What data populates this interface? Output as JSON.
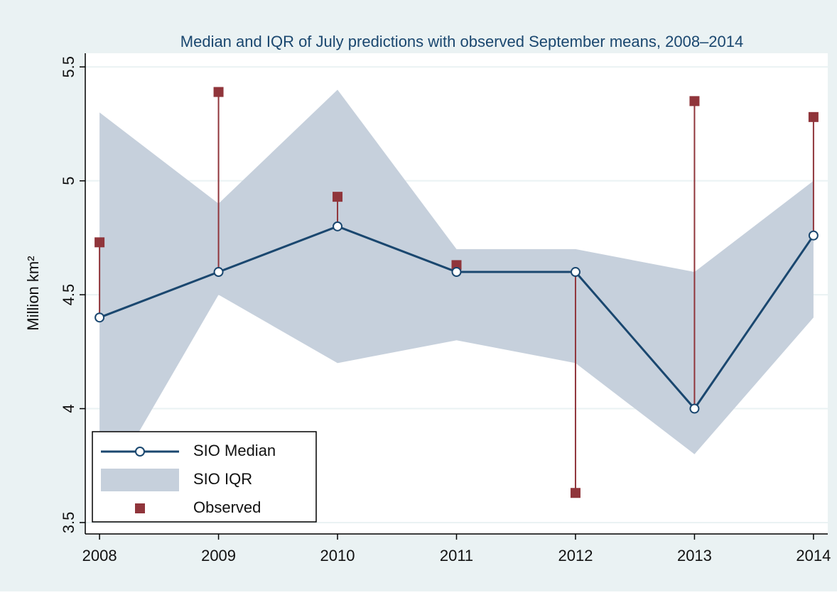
{
  "chart_data": {
    "type": "line",
    "title": "Median and IQR of July predictions with observed September means, 2008–2014",
    "ylabel": "Million km²",
    "x": [
      2008,
      2009,
      2010,
      2011,
      2012,
      2013,
      2014
    ],
    "xlim": [
      2007.88,
      2014.12
    ],
    "xticks": [
      2008,
      2009,
      2010,
      2011,
      2012,
      2013,
      2014
    ],
    "ylim": [
      3.45,
      5.56
    ],
    "yticks": [
      3.5,
      4.0,
      4.5,
      5.0,
      5.5
    ],
    "grid": true,
    "legend": "bottom-left",
    "series": [
      {
        "name": "SIO Median",
        "color": "#1a476f",
        "kind": "line",
        "values": [
          4.4,
          4.6,
          4.8,
          4.6,
          4.6,
          4.0,
          4.76
        ]
      },
      {
        "name": "SIO IQR",
        "color": "#c6d0dc",
        "kind": "band",
        "low": [
          3.6,
          4.5,
          4.2,
          4.3,
          4.2,
          3.8,
          4.4
        ],
        "high": [
          5.3,
          4.9,
          5.4,
          4.7,
          4.7,
          4.6,
          5.0
        ]
      },
      {
        "name": "Observed",
        "color": "#90353b",
        "kind": "spike",
        "values": [
          4.73,
          5.39,
          4.93,
          4.63,
          3.63,
          5.35,
          5.28
        ]
      }
    ]
  }
}
